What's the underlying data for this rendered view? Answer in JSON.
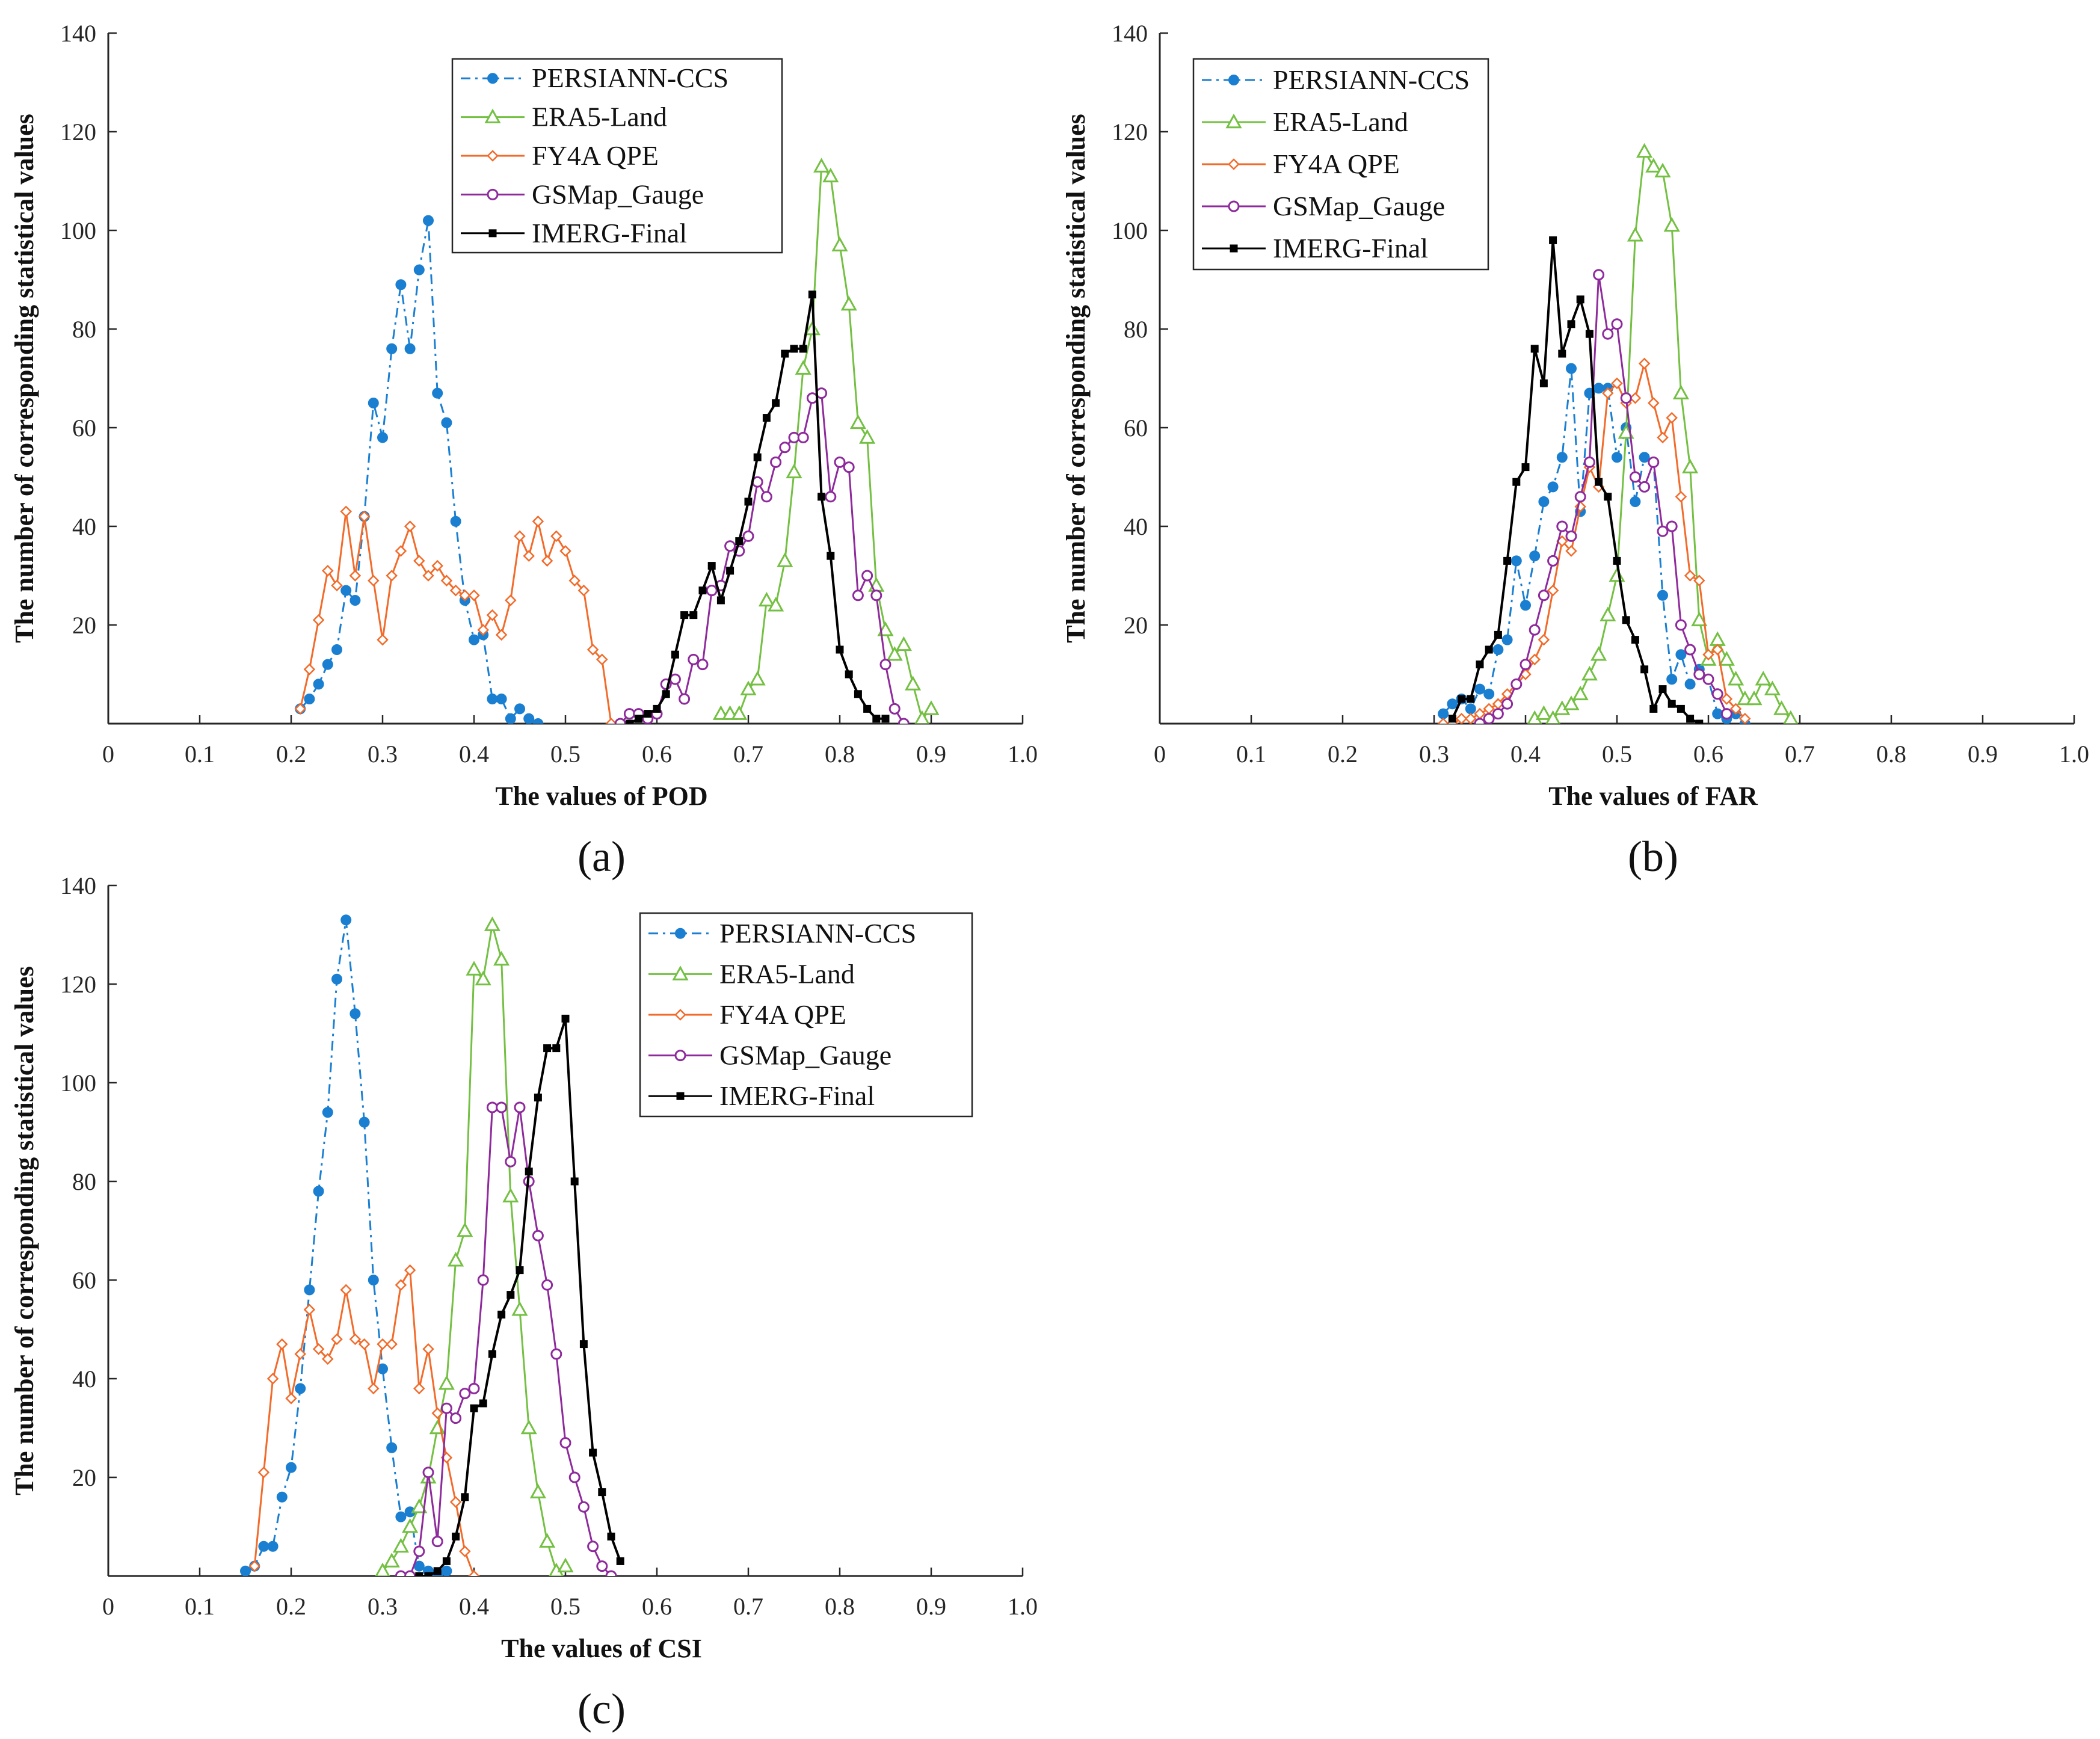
{
  "colors": {
    "PERSIANN-CCS": "#1a7fd1",
    "ERA5-Land": "#74c043",
    "FY4A QPE": "#f26b2a",
    "GSMap_Gauge": "#8e2a9c",
    "IMERG-Final": "#000000"
  },
  "chart_data": [
    {
      "type": "line",
      "panel_label": "(a)",
      "xlabel": "The values of POD",
      "ylabel": "The number of corresponding statistical values",
      "xlim": [
        0,
        1.0
      ],
      "ylim": [
        0,
        140
      ],
      "xticks": [
        "0",
        "0.1",
        "0.2",
        "0.3",
        "0.4",
        "0.5",
        "0.6",
        "0.7",
        "0.8",
        "0.9",
        "1.0"
      ],
      "yticks": [
        "20",
        "40",
        "60",
        "80",
        "100",
        "120",
        "140"
      ],
      "legend_position": "top-center",
      "series": [
        {
          "name": "PERSIANN-CCS",
          "style": "dashdot",
          "marker": "dot",
          "x": [
            0.21,
            0.22,
            0.23,
            0.24,
            0.25,
            0.26,
            0.27,
            0.28,
            0.29,
            0.3,
            0.31,
            0.32,
            0.33,
            0.34,
            0.35,
            0.36,
            0.37,
            0.38,
            0.39,
            0.4,
            0.41,
            0.42,
            0.43,
            0.44,
            0.45,
            0.46,
            0.47
          ],
          "y": [
            3,
            5,
            8,
            12,
            15,
            27,
            25,
            42,
            65,
            58,
            76,
            89,
            76,
            92,
            102,
            67,
            61,
            41,
            25,
            17,
            18,
            5,
            5,
            1,
            3,
            1,
            0
          ]
        },
        {
          "name": "ERA5-Land",
          "style": "solid",
          "marker": "triangle",
          "x": [
            0.67,
            0.68,
            0.69,
            0.7,
            0.71,
            0.72,
            0.73,
            0.74,
            0.75,
            0.76,
            0.77,
            0.78,
            0.79,
            0.8,
            0.81,
            0.82,
            0.83,
            0.84,
            0.85,
            0.86,
            0.87,
            0.88,
            0.89,
            0.9
          ],
          "y": [
            2,
            2,
            2,
            7,
            9,
            25,
            24,
            33,
            51,
            72,
            80,
            113,
            111,
            97,
            85,
            61,
            58,
            28,
            19,
            14,
            16,
            8,
            1,
            3
          ]
        },
        {
          "name": "FY4A QPE",
          "style": "solid",
          "marker": "diamond",
          "x": [
            0.21,
            0.22,
            0.23,
            0.24,
            0.25,
            0.26,
            0.27,
            0.28,
            0.29,
            0.3,
            0.31,
            0.32,
            0.33,
            0.34,
            0.35,
            0.36,
            0.37,
            0.38,
            0.39,
            0.4,
            0.41,
            0.42,
            0.43,
            0.44,
            0.45,
            0.46,
            0.47,
            0.48,
            0.49,
            0.5,
            0.51,
            0.52,
            0.53,
            0.54,
            0.55
          ],
          "y": [
            3,
            11,
            21,
            31,
            28,
            43,
            30,
            42,
            29,
            17,
            30,
            35,
            40,
            33,
            30,
            32,
            29,
            27,
            26,
            26,
            19,
            22,
            18,
            25,
            38,
            34,
            41,
            33,
            38,
            35,
            29,
            27,
            15,
            13,
            0
          ]
        },
        {
          "name": "GSMap_Gauge",
          "style": "solid",
          "marker": "circle",
          "x": [
            0.56,
            0.57,
            0.58,
            0.59,
            0.6,
            0.61,
            0.62,
            0.63,
            0.64,
            0.65,
            0.66,
            0.67,
            0.68,
            0.69,
            0.7,
            0.71,
            0.72,
            0.73,
            0.74,
            0.75,
            0.76,
            0.77,
            0.78,
            0.79,
            0.8,
            0.81,
            0.82,
            0.83,
            0.84,
            0.85,
            0.86,
            0.87
          ],
          "y": [
            0,
            2,
            2,
            1,
            2,
            8,
            9,
            5,
            13,
            12,
            27,
            28,
            36,
            35,
            38,
            49,
            46,
            53,
            56,
            58,
            58,
            66,
            67,
            46,
            53,
            52,
            26,
            30,
            26,
            12,
            3,
            0
          ]
        },
        {
          "name": "IMERG-Final",
          "style": "solid",
          "marker": "square",
          "x": [
            0.57,
            0.58,
            0.59,
            0.6,
            0.61,
            0.62,
            0.63,
            0.64,
            0.65,
            0.66,
            0.67,
            0.68,
            0.69,
            0.7,
            0.71,
            0.72,
            0.73,
            0.74,
            0.75,
            0.76,
            0.77,
            0.78,
            0.79,
            0.8,
            0.81,
            0.82,
            0.83,
            0.84,
            0.85
          ],
          "y": [
            0,
            1,
            2,
            3,
            6,
            14,
            22,
            22,
            27,
            32,
            25,
            31,
            37,
            45,
            54,
            62,
            65,
            75,
            76,
            76,
            87,
            46,
            34,
            15,
            10,
            6,
            3,
            1,
            1
          ]
        }
      ]
    },
    {
      "type": "line",
      "panel_label": "(b)",
      "xlabel": "The values of FAR",
      "ylabel": "The number of corresponding statistical values",
      "xlim": [
        0,
        1.0
      ],
      "ylim": [
        0,
        140
      ],
      "xticks": [
        "0",
        "0.1",
        "0.2",
        "0.3",
        "0.4",
        "0.5",
        "0.6",
        "0.7",
        "0.8",
        "0.9",
        "1.0"
      ],
      "yticks": [
        "20",
        "40",
        "60",
        "80",
        "100",
        "120",
        "140"
      ],
      "legend_position": "top-left",
      "series": [
        {
          "name": "PERSIANN-CCS",
          "style": "dashdot",
          "marker": "dot",
          "x": [
            0.31,
            0.32,
            0.33,
            0.34,
            0.35,
            0.36,
            0.37,
            0.38,
            0.39,
            0.4,
            0.41,
            0.42,
            0.43,
            0.44,
            0.45,
            0.46,
            0.47,
            0.48,
            0.49,
            0.5,
            0.51,
            0.52,
            0.53,
            0.54,
            0.55,
            0.56,
            0.57,
            0.58,
            0.59,
            0.6,
            0.61,
            0.62,
            0.63,
            0.64
          ],
          "y": [
            2,
            4,
            5,
            3,
            7,
            6,
            15,
            17,
            33,
            24,
            34,
            45,
            48,
            54,
            72,
            43,
            67,
            68,
            68,
            54,
            60,
            45,
            54,
            53,
            26,
            9,
            14,
            8,
            11,
            9,
            2,
            1,
            2,
            0
          ]
        },
        {
          "name": "ERA5-Land",
          "style": "solid",
          "marker": "triangle",
          "x": [
            0.41,
            0.42,
            0.43,
            0.44,
            0.45,
            0.46,
            0.47,
            0.48,
            0.49,
            0.5,
            0.51,
            0.52,
            0.53,
            0.54,
            0.55,
            0.56,
            0.57,
            0.58,
            0.59,
            0.6,
            0.61,
            0.62,
            0.63,
            0.64,
            0.65,
            0.66,
            0.67,
            0.68,
            0.69
          ],
          "y": [
            1,
            2,
            1,
            3,
            4,
            6,
            10,
            14,
            22,
            30,
            59,
            99,
            116,
            113,
            112,
            101,
            67,
            52,
            21,
            13,
            17,
            13,
            9,
            5,
            5,
            9,
            7,
            3,
            1
          ]
        },
        {
          "name": "FY4A QPE",
          "style": "solid",
          "marker": "diamond",
          "x": [
            0.31,
            0.32,
            0.33,
            0.34,
            0.35,
            0.36,
            0.37,
            0.38,
            0.39,
            0.4,
            0.41,
            0.42,
            0.43,
            0.44,
            0.45,
            0.46,
            0.47,
            0.48,
            0.49,
            0.5,
            0.51,
            0.52,
            0.53,
            0.54,
            0.55,
            0.56,
            0.57,
            0.58,
            0.59,
            0.6,
            0.61,
            0.62,
            0.63,
            0.64
          ],
          "y": [
            0,
            0,
            1,
            1,
            2,
            3,
            4,
            6,
            8,
            10,
            13,
            17,
            27,
            37,
            35,
            44,
            52,
            48,
            67,
            69,
            65,
            66,
            73,
            65,
            58,
            62,
            46,
            30,
            29,
            14,
            15,
            5,
            3,
            1
          ]
        },
        {
          "name": "GSMap_Gauge",
          "style": "solid",
          "marker": "circle",
          "x": [
            0.35,
            0.36,
            0.37,
            0.38,
            0.39,
            0.4,
            0.41,
            0.42,
            0.43,
            0.44,
            0.45,
            0.46,
            0.47,
            0.48,
            0.49,
            0.5,
            0.51,
            0.52,
            0.53,
            0.54,
            0.55,
            0.56,
            0.57,
            0.58,
            0.59,
            0.6,
            0.61,
            0.62
          ],
          "y": [
            0,
            1,
            2,
            4,
            8,
            12,
            19,
            26,
            33,
            40,
            38,
            46,
            53,
            91,
            79,
            81,
            66,
            50,
            48,
            53,
            39,
            40,
            20,
            15,
            10,
            9,
            6,
            2
          ]
        },
        {
          "name": "IMERG-Final",
          "style": "solid",
          "marker": "square",
          "x": [
            0.32,
            0.33,
            0.34,
            0.35,
            0.36,
            0.37,
            0.38,
            0.39,
            0.4,
            0.41,
            0.42,
            0.43,
            0.44,
            0.45,
            0.46,
            0.47,
            0.48,
            0.49,
            0.5,
            0.51,
            0.52,
            0.53,
            0.54,
            0.55,
            0.56,
            0.57,
            0.58,
            0.59
          ],
          "y": [
            1,
            5,
            5,
            12,
            15,
            18,
            33,
            49,
            52,
            76,
            69,
            98,
            75,
            81,
            86,
            79,
            49,
            46,
            33,
            21,
            17,
            11,
            3,
            7,
            4,
            3,
            1,
            0
          ]
        }
      ]
    },
    {
      "type": "line",
      "panel_label": "(c)",
      "xlabel": "The values of CSI",
      "ylabel": "The number of corresponding statistical values",
      "xlim": [
        0,
        1.0
      ],
      "ylim": [
        0,
        140
      ],
      "xticks": [
        "0",
        "0.1",
        "0.2",
        "0.3",
        "0.4",
        "0.5",
        "0.6",
        "0.7",
        "0.8",
        "0.9",
        "1.0"
      ],
      "yticks": [
        "20",
        "40",
        "60",
        "80",
        "100",
        "120",
        "140"
      ],
      "legend_position": "top-right",
      "series": [
        {
          "name": "PERSIANN-CCS",
          "style": "dashdot",
          "marker": "dot",
          "x": [
            0.15,
            0.16,
            0.17,
            0.18,
            0.19,
            0.2,
            0.21,
            0.22,
            0.23,
            0.24,
            0.25,
            0.26,
            0.27,
            0.28,
            0.29,
            0.3,
            0.31,
            0.32,
            0.33,
            0.34,
            0.35,
            0.36,
            0.37
          ],
          "y": [
            1,
            2,
            6,
            6,
            16,
            22,
            38,
            58,
            78,
            94,
            121,
            133,
            114,
            92,
            60,
            42,
            26,
            12,
            13,
            2,
            1,
            0,
            1
          ]
        },
        {
          "name": "ERA5-Land",
          "style": "solid",
          "marker": "triangle",
          "x": [
            0.3,
            0.31,
            0.32,
            0.33,
            0.34,
            0.35,
            0.36,
            0.37,
            0.38,
            0.39,
            0.4,
            0.41,
            0.42,
            0.43,
            0.44,
            0.45,
            0.46,
            0.47,
            0.48,
            0.49,
            0.5
          ],
          "y": [
            1,
            3,
            6,
            10,
            14,
            20,
            30,
            39,
            64,
            70,
            123,
            121,
            132,
            125,
            77,
            54,
            30,
            17,
            7,
            1,
            2
          ]
        },
        {
          "name": "FY4A QPE",
          "style": "solid",
          "marker": "diamond",
          "x": [
            0.16,
            0.17,
            0.18,
            0.19,
            0.2,
            0.21,
            0.22,
            0.23,
            0.24,
            0.25,
            0.26,
            0.27,
            0.28,
            0.29,
            0.3,
            0.31,
            0.32,
            0.33,
            0.34,
            0.35,
            0.36,
            0.37,
            0.38,
            0.39,
            0.4
          ],
          "y": [
            2,
            21,
            40,
            47,
            36,
            45,
            54,
            46,
            44,
            48,
            58,
            48,
            47,
            38,
            47,
            47,
            59,
            62,
            38,
            46,
            33,
            24,
            15,
            5,
            0
          ]
        },
        {
          "name": "GSMap_Gauge",
          "style": "solid",
          "marker": "circle",
          "x": [
            0.32,
            0.33,
            0.34,
            0.35,
            0.36,
            0.37,
            0.38,
            0.39,
            0.4,
            0.41,
            0.42,
            0.43,
            0.44,
            0.45,
            0.46,
            0.47,
            0.48,
            0.49,
            0.5,
            0.51,
            0.52,
            0.53,
            0.54,
            0.55
          ],
          "y": [
            0,
            0,
            5,
            21,
            7,
            34,
            32,
            37,
            38,
            60,
            95,
            95,
            84,
            95,
            80,
            69,
            59,
            45,
            27,
            20,
            14,
            6,
            2,
            0
          ]
        },
        {
          "name": "IMERG-Final",
          "style": "solid",
          "marker": "square",
          "x": [
            0.34,
            0.35,
            0.36,
            0.37,
            0.38,
            0.39,
            0.4,
            0.41,
            0.42,
            0.43,
            0.44,
            0.45,
            0.46,
            0.47,
            0.48,
            0.49,
            0.5,
            0.51,
            0.52,
            0.53,
            0.54,
            0.55,
            0.56
          ],
          "y": [
            0,
            0,
            1,
            3,
            8,
            16,
            34,
            35,
            45,
            53,
            57,
            62,
            82,
            97,
            107,
            107,
            113,
            80,
            47,
            25,
            17,
            8,
            3
          ]
        }
      ]
    }
  ]
}
